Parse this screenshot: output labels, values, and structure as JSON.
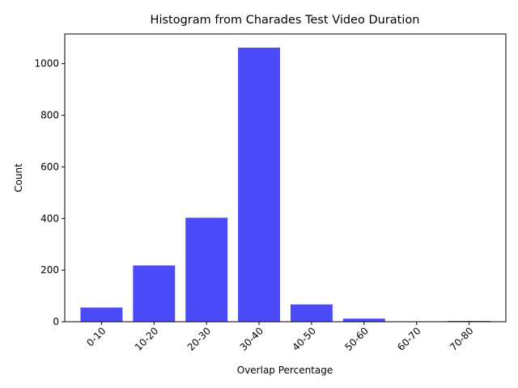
{
  "chart_data": {
    "type": "bar",
    "title": "Histogram from Charades Test Video Duration",
    "xlabel": "Overlap Percentage",
    "ylabel": "Count",
    "categories": [
      "0-10",
      "10-20",
      "20-30",
      "30-40",
      "40-50",
      "50-60",
      "60-70",
      "70-80"
    ],
    "values": [
      55,
      218,
      403,
      1062,
      67,
      12,
      1,
      3
    ],
    "ylim": [
      0,
      1115
    ],
    "yticks": [
      0,
      200,
      400,
      600,
      800,
      1000
    ],
    "bar_color": "#4b4bfa",
    "grid": false,
    "legend": null
  }
}
